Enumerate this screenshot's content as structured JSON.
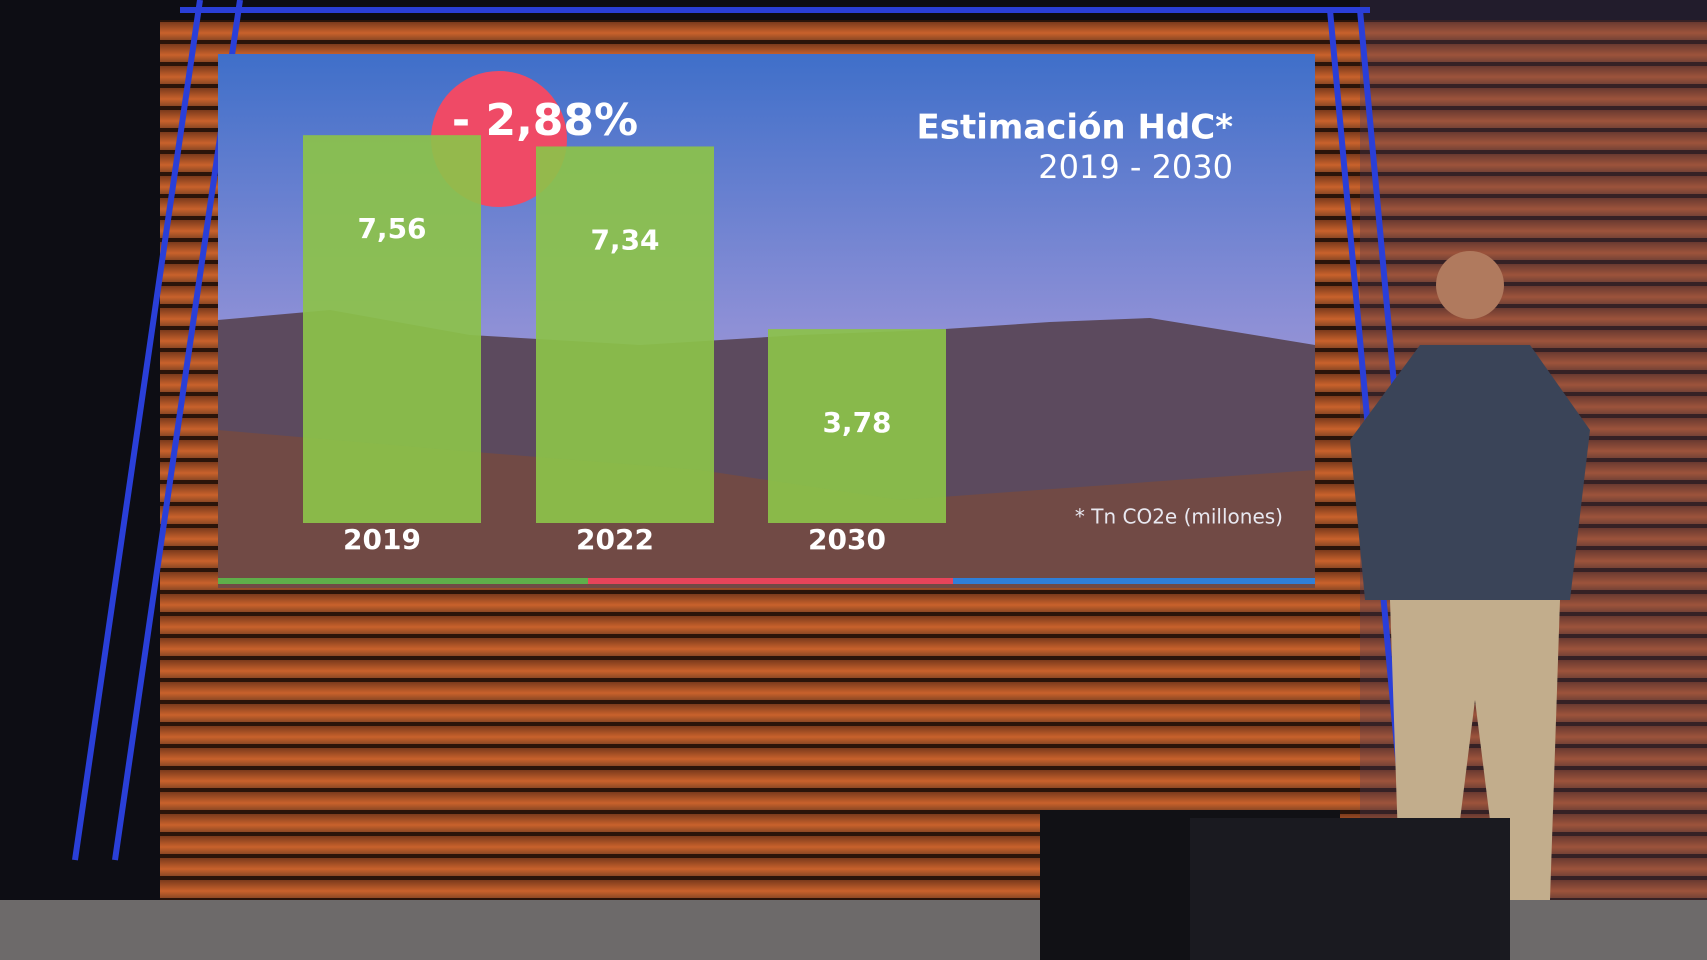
{
  "chart_data": {
    "type": "bar",
    "title": "Estimación HdC*",
    "subtitle": "2019 - 2030",
    "categories": [
      "2019",
      "2022",
      "2030"
    ],
    "values": [
      7.56,
      7.34,
      3.78
    ],
    "value_labels": [
      "7,56",
      "7,34",
      "3,78"
    ],
    "color": "#8cc24a",
    "annotation": "- 2,88%",
    "note": "* Tn CO2e (millones)"
  }
}
